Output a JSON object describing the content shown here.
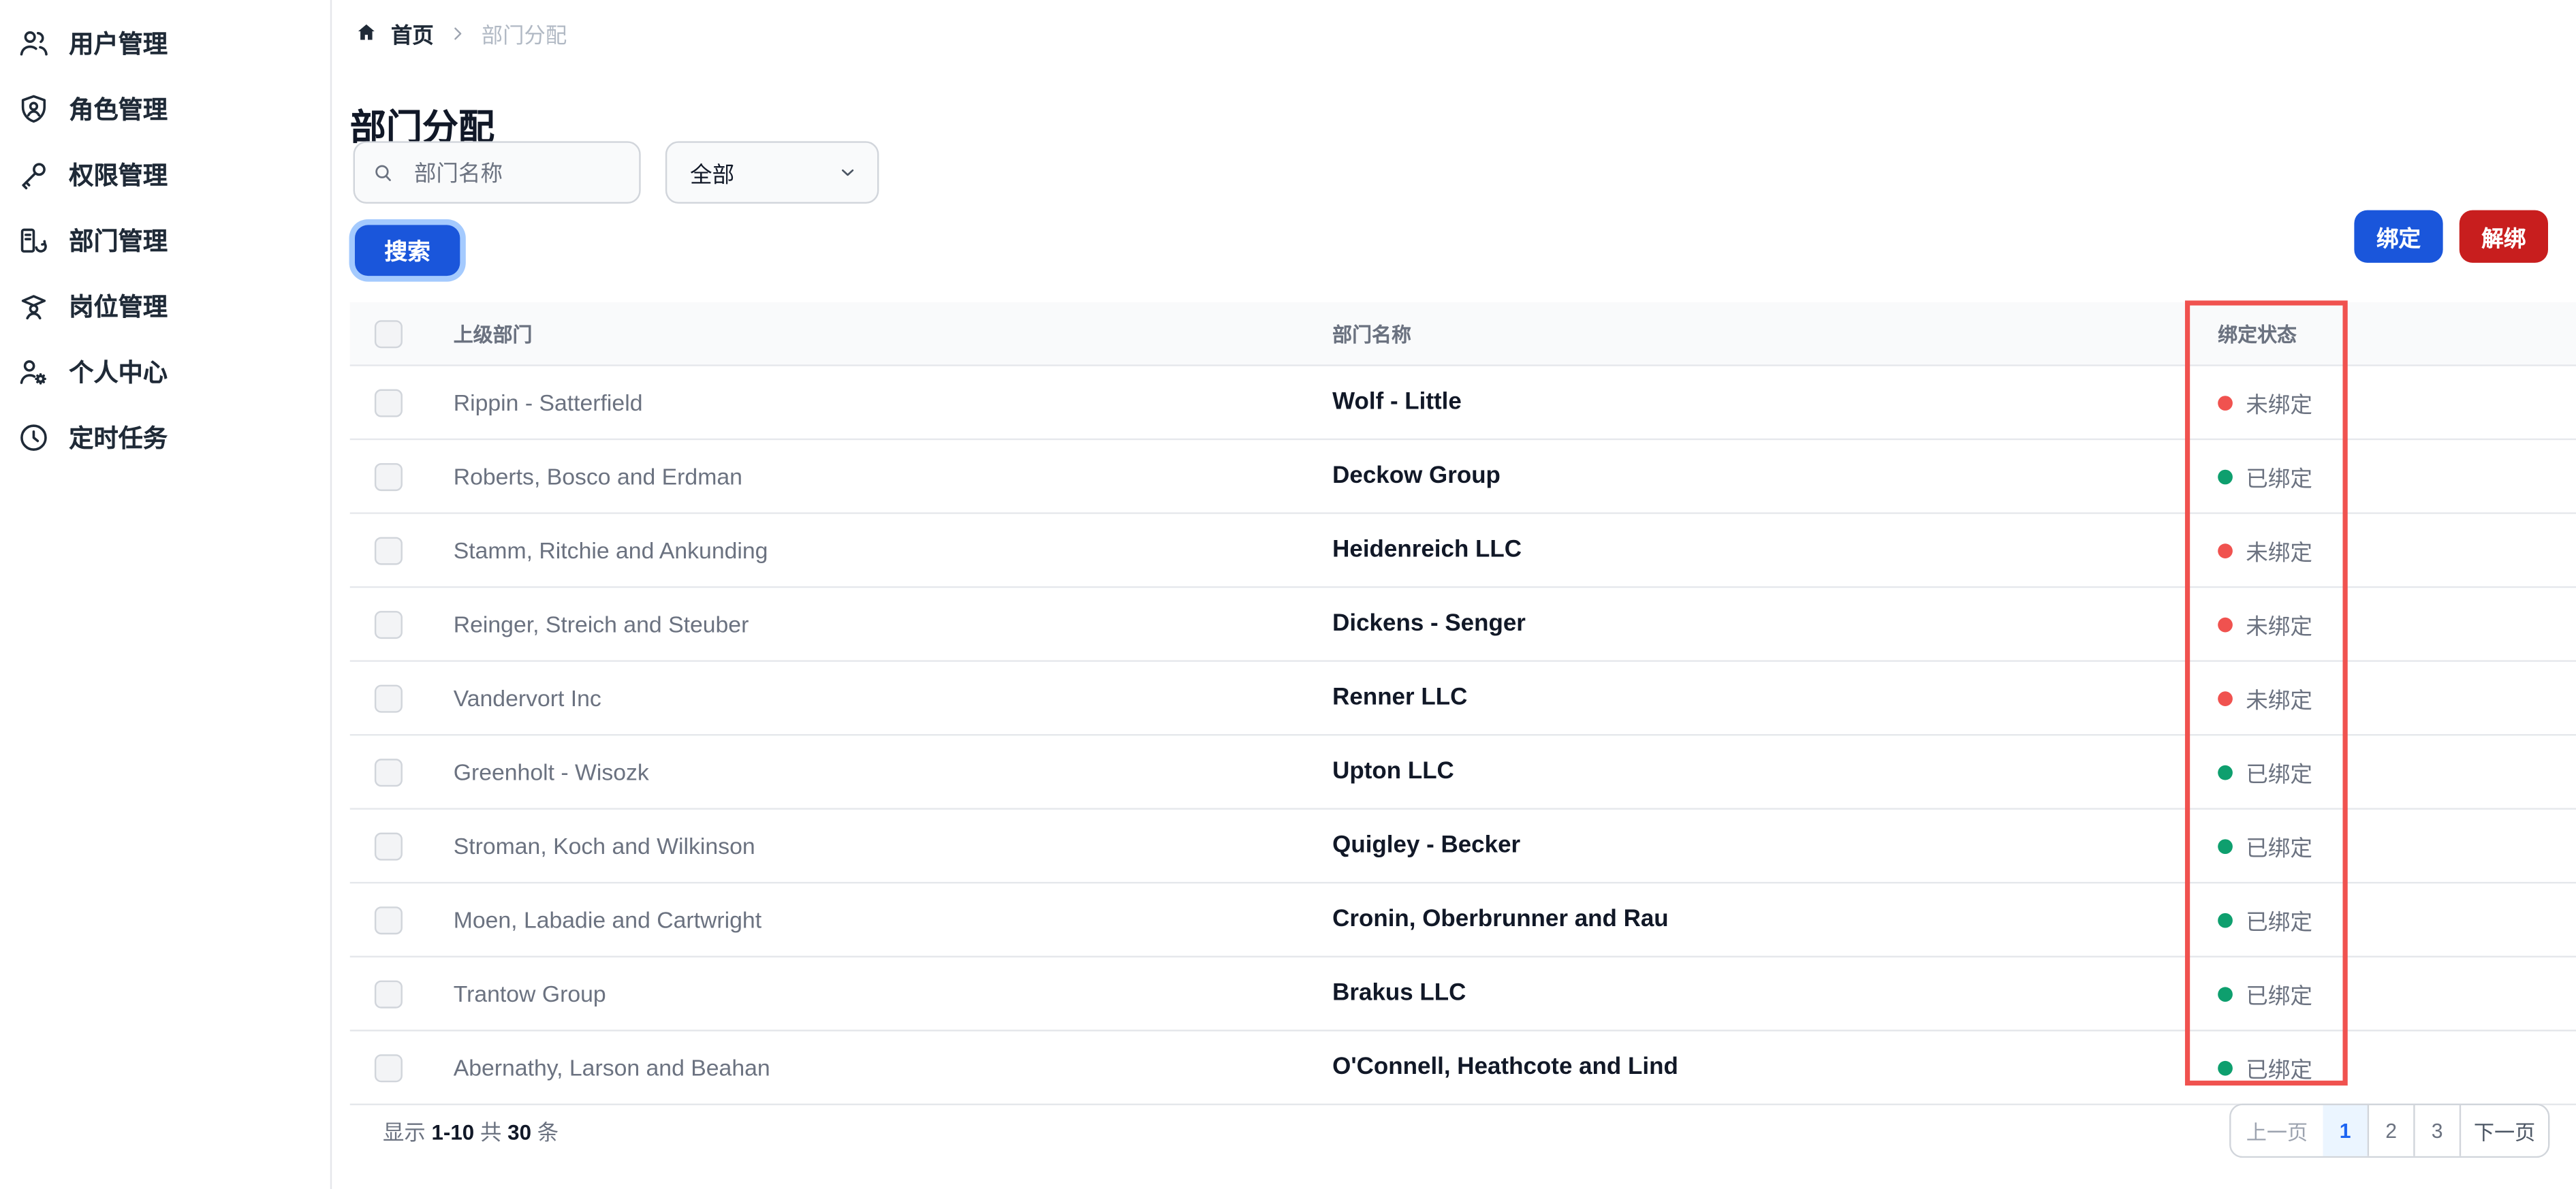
{
  "sidebar": {
    "items": [
      {
        "label": "用户管理",
        "icon": "users-icon"
      },
      {
        "label": "角色管理",
        "icon": "shield-user-icon"
      },
      {
        "label": "权限管理",
        "icon": "key-icon"
      },
      {
        "label": "部门管理",
        "icon": "department-icon"
      },
      {
        "label": "岗位管理",
        "icon": "position-icon"
      },
      {
        "label": "个人中心",
        "icon": "profile-settings-icon"
      },
      {
        "label": "定时任务",
        "icon": "clock-icon"
      }
    ]
  },
  "breadcrumb": {
    "home_label": "首页",
    "current": "部门分配"
  },
  "page": {
    "title": "部门分配"
  },
  "filters": {
    "search_placeholder": "部门名称",
    "filter_selected_value": "全部",
    "search_button_label": "搜索"
  },
  "actions": {
    "bind_label": "绑定",
    "unbind_label": "解绑"
  },
  "table": {
    "headers": {
      "parent": "上级部门",
      "name": "部门名称",
      "status": "绑定状态"
    },
    "rows": [
      {
        "parent": "Rippin - Satterfield",
        "name": "Wolf - Little",
        "status_label": "未绑定",
        "bound": false
      },
      {
        "parent": "Roberts, Bosco and Erdman",
        "name": "Deckow Group",
        "status_label": "已绑定",
        "bound": true
      },
      {
        "parent": "Stamm, Ritchie and Ankunding",
        "name": "Heidenreich LLC",
        "status_label": "未绑定",
        "bound": false
      },
      {
        "parent": "Reinger, Streich and Steuber",
        "name": "Dickens - Senger",
        "status_label": "未绑定",
        "bound": false
      },
      {
        "parent": "Vandervort Inc",
        "name": "Renner LLC",
        "status_label": "未绑定",
        "bound": false
      },
      {
        "parent": "Greenholt - Wisozk",
        "name": "Upton LLC",
        "status_label": "已绑定",
        "bound": true
      },
      {
        "parent": "Stroman, Koch and Wilkinson",
        "name": "Quigley - Becker",
        "status_label": "已绑定",
        "bound": true
      },
      {
        "parent": "Moen, Labadie and Cartwright",
        "name": "Cronin, Oberbrunner and Rau",
        "status_label": "已绑定",
        "bound": true
      },
      {
        "parent": "Trantow Group",
        "name": "Brakus LLC",
        "status_label": "已绑定",
        "bound": true
      },
      {
        "parent": "Abernathy, Larson and Beahan",
        "name": "O'Connell, Heathcote and Lind",
        "status_label": "已绑定",
        "bound": true
      }
    ]
  },
  "pagination": {
    "showing_label": "显示",
    "range": "1-10",
    "total_label": "共",
    "total": "30",
    "unit_label": "条",
    "prev_label": "上一页",
    "pages": [
      "1",
      "2",
      "3"
    ],
    "active_page": "1",
    "next_label": "下一页"
  },
  "colors": {
    "primary_blue": "#1a56db",
    "danger_red": "#c81e1e",
    "focus_ring_blue": "#a4cafe",
    "status_bound_green": "#0e9f6e",
    "status_unbound_red": "#f0524f",
    "highlight_box_red": "#f0524f"
  }
}
